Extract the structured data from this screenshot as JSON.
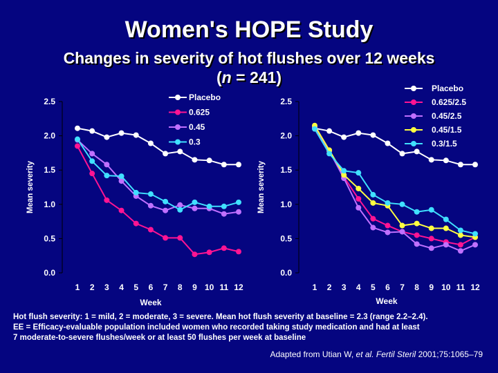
{
  "title": "Women's HOPE Study",
  "subtitle": {
    "line1": "Changes in severity of hot flushes over 12 weeks",
    "n_prefix": "(",
    "n_var": "n",
    "n_value": " = 241)"
  },
  "footnotes": [
    "Hot flush severity: 1 = mild, 2 = moderate, 3 = severe. Mean hot flush severity at baseline = 2.3 (range 2.2–2.4).",
    "EE = Efficacy-evaluable population included women who recorded taking study medication and had at least",
    "7 moderate-to-severe flushes/week or at least 50 flushes per week at baseline"
  ],
  "citation": {
    "prefix": "Adapted from Utian W, ",
    "etal": "et al.",
    "journal": " Fertil Steril",
    "rest": " 2001;75:1065–79"
  },
  "colors": {
    "background": "#050580",
    "placebo": "#ffffff",
    "magenta": "#ff1493",
    "purple": "#c070ff",
    "cyan": "#40e0ff",
    "yellow": "#ffff40"
  },
  "chart_data": [
    {
      "type": "line",
      "xlabel": "Week",
      "ylabel": "Mean severity",
      "ylim": [
        0,
        2.5
      ],
      "yticks": [
        "0.0",
        "0.5",
        "1.0",
        "1.5",
        "2.0",
        "2.5"
      ],
      "x": [
        1,
        2,
        3,
        4,
        5,
        6,
        7,
        8,
        9,
        10,
        11,
        12
      ],
      "legend": "top-right",
      "series": [
        {
          "name": "Placebo",
          "color": "#ffffff",
          "values": [
            2.11,
            2.07,
            1.98,
            2.04,
            2.01,
            1.89,
            1.74,
            1.77,
            1.65,
            1.64,
            1.58,
            1.58
          ]
        },
        {
          "name": "0.625",
          "color": "#ff1493",
          "values": [
            1.85,
            1.45,
            1.06,
            0.91,
            0.72,
            0.63,
            0.51,
            0.51,
            0.27,
            0.3,
            0.36,
            0.31
          ]
        },
        {
          "name": "0.45",
          "color": "#c070ff",
          "values": [
            1.94,
            1.74,
            1.58,
            1.34,
            1.12,
            0.98,
            0.91,
            0.99,
            0.94,
            0.94,
            0.86,
            0.89
          ]
        },
        {
          "name": "0.3",
          "color": "#40e0ff",
          "values": [
            1.95,
            1.63,
            1.42,
            1.41,
            1.17,
            1.15,
            1.04,
            0.92,
            1.03,
            0.97,
            0.97,
            1.03
          ]
        }
      ]
    },
    {
      "type": "line",
      "xlabel": "Week",
      "ylabel": "Mean severity",
      "ylim": [
        0,
        2.5
      ],
      "yticks": [
        "0.0",
        "0.5",
        "1.0",
        "1.5",
        "2.0",
        "2.5"
      ],
      "x": [
        1,
        2,
        3,
        4,
        5,
        6,
        7,
        8,
        9,
        10,
        11,
        12
      ],
      "legend": "top-right",
      "series": [
        {
          "name": "Placebo",
          "color": "#ffffff",
          "values": [
            2.11,
            2.07,
            1.98,
            2.04,
            2.01,
            1.89,
            1.74,
            1.77,
            1.65,
            1.64,
            1.58,
            1.58
          ]
        },
        {
          "name": "0.625/2.5",
          "color": "#ff1493",
          "values": [
            2.13,
            1.78,
            1.4,
            1.08,
            0.79,
            0.69,
            0.6,
            0.55,
            0.5,
            0.45,
            0.41,
            0.52
          ]
        },
        {
          "name": "0.45/2.5",
          "color": "#c070ff",
          "values": [
            2.12,
            1.78,
            1.38,
            0.95,
            0.66,
            0.59,
            0.6,
            0.42,
            0.36,
            0.41,
            0.32,
            0.41
          ]
        },
        {
          "name": "0.45/1.5",
          "color": "#ffff40",
          "values": [
            2.15,
            1.79,
            1.43,
            1.23,
            1.02,
            0.98,
            0.69,
            0.72,
            0.65,
            0.65,
            0.55,
            0.52
          ]
        },
        {
          "name": "0.3/1.5",
          "color": "#40e0ff",
          "values": [
            2.1,
            1.74,
            1.49,
            1.46,
            1.14,
            1.02,
            1.0,
            0.89,
            0.92,
            0.78,
            0.62,
            0.57
          ]
        }
      ]
    }
  ]
}
